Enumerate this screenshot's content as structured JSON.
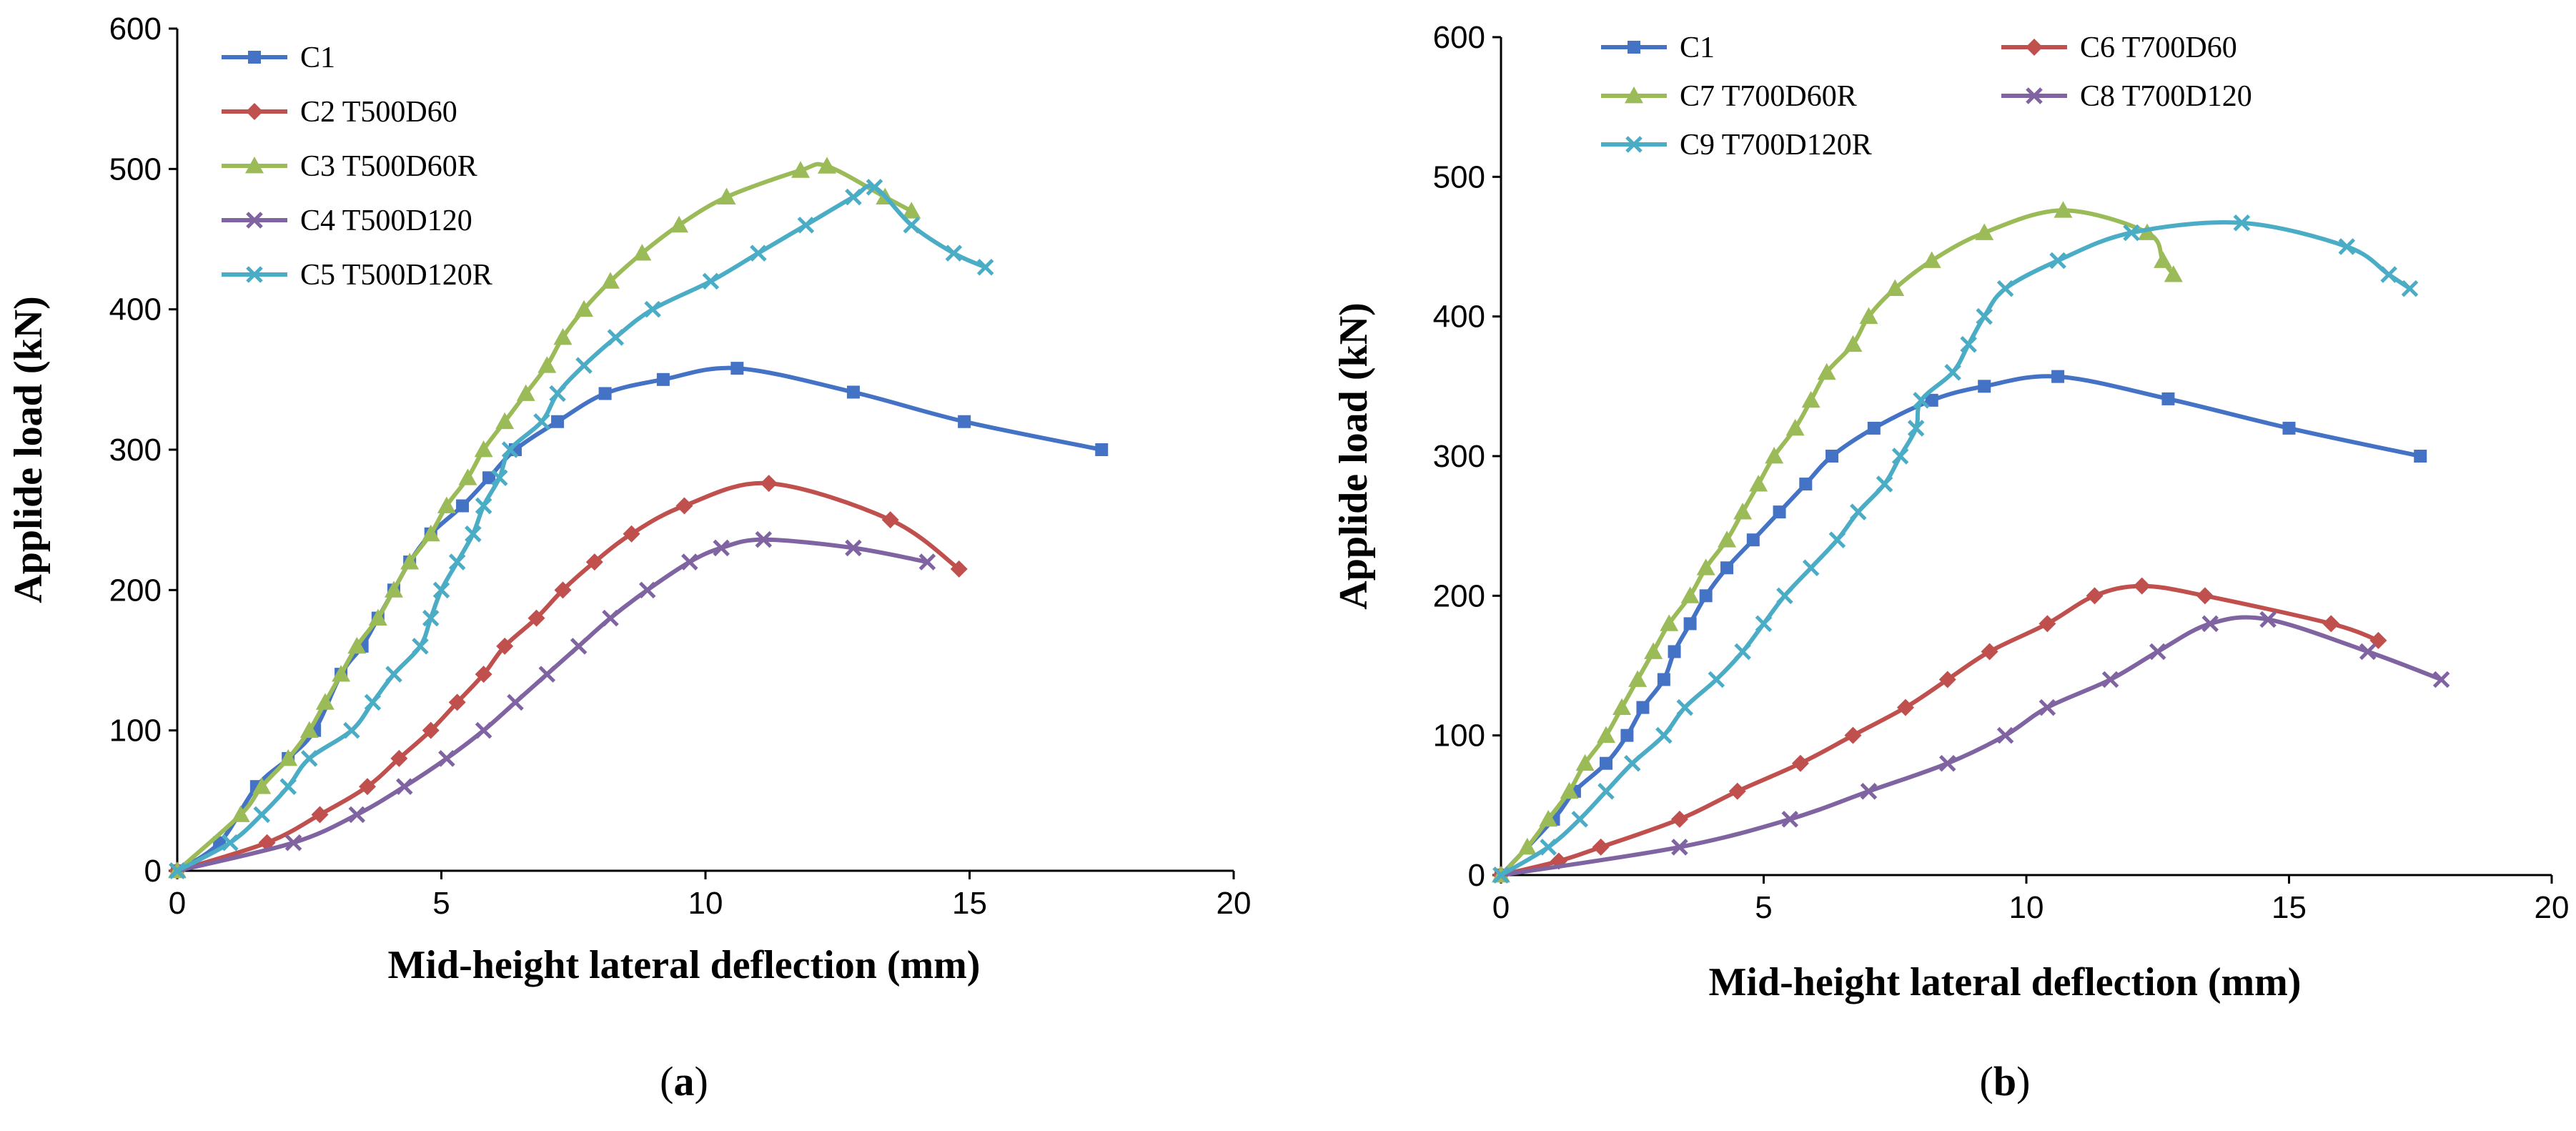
{
  "chart_data": [
    {
      "type": "line",
      "panel_label": {
        "open": "(",
        "letter": "a",
        "close": ")"
      },
      "xlabel": "Mid-height lateral deflection (mm)",
      "ylabel": "Applide load (kN)",
      "xlim": [
        0,
        20
      ],
      "ylim": [
        0,
        600
      ],
      "xticks": [
        "0",
        "5",
        "10",
        "15",
        "20"
      ],
      "yticks": [
        "0",
        "100",
        "200",
        "300",
        "400",
        "500",
        "600"
      ],
      "grid": false,
      "legend_position": "top-left",
      "legend_columns": 1,
      "series": [
        {
          "name": "C1",
          "color": "#4472C4",
          "marker": "square",
          "points": [
            [
              0,
              0
            ],
            [
              0.8,
              20
            ],
            [
              1.5,
              60
            ],
            [
              2.1,
              80
            ],
            [
              2.6,
              100
            ],
            [
              3.1,
              140
            ],
            [
              3.5,
              160
            ],
            [
              3.8,
              180
            ],
            [
              4.1,
              200
            ],
            [
              4.4,
              220
            ],
            [
              4.8,
              240
            ],
            [
              5.4,
              260
            ],
            [
              5.9,
              280
            ],
            [
              6.4,
              300
            ],
            [
              7.2,
              320
            ],
            [
              8.1,
              340
            ],
            [
              9.2,
              350
            ],
            [
              10.6,
              358
            ],
            [
              12.8,
              341
            ],
            [
              14.9,
              320
            ],
            [
              17.5,
              300
            ]
          ]
        },
        {
          "name": "C2 T500D60",
          "color": "#C0504D",
          "marker": "diamond",
          "points": [
            [
              0,
              0
            ],
            [
              1.7,
              20
            ],
            [
              2.7,
              40
            ],
            [
              3.6,
              60
            ],
            [
              4.2,
              80
            ],
            [
              4.8,
              100
            ],
            [
              5.3,
              120
            ],
            [
              5.8,
              140
            ],
            [
              6.2,
              160
            ],
            [
              6.8,
              180
            ],
            [
              7.3,
              200
            ],
            [
              7.9,
              220
            ],
            [
              8.6,
              240
            ],
            [
              9.6,
              260
            ],
            [
              11.2,
              276
            ],
            [
              13.5,
              250
            ],
            [
              14.8,
              215
            ]
          ]
        },
        {
          "name": "C3 T500D60R",
          "color": "#9BBB59",
          "marker": "triangle",
          "points": [
            [
              0,
              0
            ],
            [
              1.2,
              40
            ],
            [
              1.6,
              60
            ],
            [
              2.1,
              80
            ],
            [
              2.5,
              100
            ],
            [
              2.8,
              120
            ],
            [
              3.1,
              140
            ],
            [
              3.4,
              160
            ],
            [
              3.8,
              180
            ],
            [
              4.1,
              200
            ],
            [
              4.4,
              220
            ],
            [
              4.8,
              240
            ],
            [
              5.1,
              260
            ],
            [
              5.5,
              280
            ],
            [
              5.8,
              300
            ],
            [
              6.2,
              320
            ],
            [
              6.6,
              340
            ],
            [
              7.0,
              360
            ],
            [
              7.3,
              380
            ],
            [
              7.7,
              400
            ],
            [
              8.2,
              420
            ],
            [
              8.8,
              440
            ],
            [
              9.5,
              460
            ],
            [
              10.4,
              480
            ],
            [
              11.8,
              499
            ],
            [
              12.3,
              502
            ],
            [
              13.4,
              480
            ],
            [
              13.9,
              470
            ]
          ]
        },
        {
          "name": "C4 T500D120",
          "color": "#8064A2",
          "marker": "x",
          "points": [
            [
              0,
              0
            ],
            [
              2.2,
              20
            ],
            [
              3.4,
              40
            ],
            [
              4.3,
              60
            ],
            [
              5.1,
              80
            ],
            [
              5.8,
              100
            ],
            [
              6.4,
              120
            ],
            [
              7.0,
              140
            ],
            [
              7.6,
              160
            ],
            [
              8.2,
              180
            ],
            [
              8.9,
              200
            ],
            [
              9.7,
              220
            ],
            [
              10.3,
              230
            ],
            [
              11.1,
              236
            ],
            [
              12.8,
              230
            ],
            [
              14.2,
              220
            ]
          ]
        },
        {
          "name": "C5 T500D120R",
          "color": "#4BACC6",
          "marker": "x",
          "points": [
            [
              0,
              0
            ],
            [
              1.0,
              20
            ],
            [
              1.6,
              40
            ],
            [
              2.1,
              60
            ],
            [
              2.5,
              80
            ],
            [
              3.3,
              100
            ],
            [
              3.7,
              120
            ],
            [
              4.1,
              140
            ],
            [
              4.6,
              160
            ],
            [
              4.8,
              180
            ],
            [
              5.0,
              200
            ],
            [
              5.3,
              220
            ],
            [
              5.6,
              240
            ],
            [
              5.8,
              260
            ],
            [
              6.1,
              280
            ],
            [
              6.3,
              300
            ],
            [
              6.9,
              320
            ],
            [
              7.2,
              340
            ],
            [
              7.7,
              360
            ],
            [
              8.3,
              380
            ],
            [
              9.0,
              400
            ],
            [
              10.1,
              420
            ],
            [
              11.0,
              440
            ],
            [
              11.9,
              460
            ],
            [
              12.8,
              480
            ],
            [
              13.2,
              487
            ],
            [
              13.9,
              460
            ],
            [
              14.7,
              440
            ],
            [
              15.3,
              430
            ]
          ]
        }
      ]
    },
    {
      "type": "line",
      "panel_label": {
        "open": "(",
        "letter": "b",
        "close": ")"
      },
      "xlabel": "Mid-height lateral deflection (mm)",
      "ylabel": "Applide load (kN)",
      "xlim": [
        0,
        20
      ],
      "ylim": [
        0,
        600
      ],
      "xticks": [
        "0",
        "5",
        "10",
        "15",
        "20"
      ],
      "yticks": [
        "0",
        "100",
        "200",
        "300",
        "400",
        "500",
        "600"
      ],
      "grid": false,
      "legend_position": "top",
      "legend_columns": 2,
      "series": [
        {
          "name": "C1",
          "color": "#4472C4",
          "marker": "square",
          "points": [
            [
              0,
              0
            ],
            [
              1.0,
              40
            ],
            [
              1.4,
              60
            ],
            [
              2.0,
              80
            ],
            [
              2.4,
              100
            ],
            [
              2.7,
              120
            ],
            [
              3.1,
              140
            ],
            [
              3.3,
              160
            ],
            [
              3.6,
              180
            ],
            [
              3.9,
              200
            ],
            [
              4.3,
              220
            ],
            [
              4.8,
              240
            ],
            [
              5.3,
              260
            ],
            [
              5.8,
              280
            ],
            [
              6.3,
              300
            ],
            [
              7.1,
              320
            ],
            [
              8.2,
              340
            ],
            [
              9.2,
              350
            ],
            [
              10.6,
              357
            ],
            [
              12.7,
              341
            ],
            [
              15.0,
              320
            ],
            [
              17.5,
              300
            ]
          ]
        },
        {
          "name": "C6 T700D60",
          "color": "#C0504D",
          "marker": "diamond",
          "points": [
            [
              0,
              0
            ],
            [
              1.1,
              10
            ],
            [
              1.9,
              20
            ],
            [
              3.4,
              40
            ],
            [
              4.5,
              60
            ],
            [
              5.7,
              80
            ],
            [
              6.7,
              100
            ],
            [
              7.7,
              120
            ],
            [
              8.5,
              140
            ],
            [
              9.3,
              160
            ],
            [
              10.4,
              180
            ],
            [
              11.3,
              200
            ],
            [
              12.2,
              207
            ],
            [
              13.4,
              200
            ],
            [
              15.8,
              180
            ],
            [
              16.7,
              168
            ]
          ]
        },
        {
          "name": "C7 T700D60R",
          "color": "#9BBB59",
          "marker": "triangle",
          "points": [
            [
              0,
              0
            ],
            [
              0.5,
              20
            ],
            [
              0.9,
              40
            ],
            [
              1.3,
              60
            ],
            [
              1.6,
              80
            ],
            [
              2.0,
              100
            ],
            [
              2.3,
              120
            ],
            [
              2.6,
              140
            ],
            [
              2.9,
              160
            ],
            [
              3.2,
              180
            ],
            [
              3.6,
              200
            ],
            [
              3.9,
              220
            ],
            [
              4.3,
              240
            ],
            [
              4.6,
              260
            ],
            [
              4.9,
              280
            ],
            [
              5.2,
              300
            ],
            [
              5.6,
              320
            ],
            [
              5.9,
              340
            ],
            [
              6.2,
              360
            ],
            [
              6.7,
              380
            ],
            [
              7.0,
              400
            ],
            [
              7.5,
              420
            ],
            [
              8.2,
              440
            ],
            [
              9.2,
              460
            ],
            [
              10.7,
              476
            ],
            [
              12.3,
              460
            ],
            [
              12.6,
              440
            ],
            [
              12.8,
              430
            ]
          ]
        },
        {
          "name": "C8 T700D120",
          "color": "#8064A2",
          "marker": "x",
          "points": [
            [
              0,
              0
            ],
            [
              3.4,
              20
            ],
            [
              5.5,
              40
            ],
            [
              7.0,
              60
            ],
            [
              8.5,
              80
            ],
            [
              9.6,
              100
            ],
            [
              10.4,
              120
            ],
            [
              11.6,
              140
            ],
            [
              12.5,
              160
            ],
            [
              13.5,
              180
            ],
            [
              14.6,
              183
            ],
            [
              16.5,
              160
            ],
            [
              17.9,
              140
            ]
          ]
        },
        {
          "name": "C9 T700D120R",
          "color": "#4BACC6",
          "marker": "x",
          "points": [
            [
              0,
              0
            ],
            [
              0.9,
              20
            ],
            [
              1.5,
              40
            ],
            [
              2.0,
              60
            ],
            [
              2.5,
              80
            ],
            [
              3.1,
              100
            ],
            [
              3.5,
              120
            ],
            [
              4.1,
              140
            ],
            [
              4.6,
              160
            ],
            [
              5.0,
              180
            ],
            [
              5.4,
              200
            ],
            [
              5.9,
              220
            ],
            [
              6.4,
              240
            ],
            [
              6.8,
              260
            ],
            [
              7.3,
              280
            ],
            [
              7.6,
              300
            ],
            [
              7.9,
              320
            ],
            [
              8.0,
              340
            ],
            [
              8.6,
              360
            ],
            [
              8.9,
              380
            ],
            [
              9.2,
              400
            ],
            [
              9.6,
              420
            ],
            [
              10.6,
              440
            ],
            [
              12.0,
              460
            ],
            [
              14.1,
              467
            ],
            [
              16.1,
              450
            ],
            [
              16.9,
              430
            ],
            [
              17.3,
              420
            ]
          ]
        }
      ]
    }
  ]
}
